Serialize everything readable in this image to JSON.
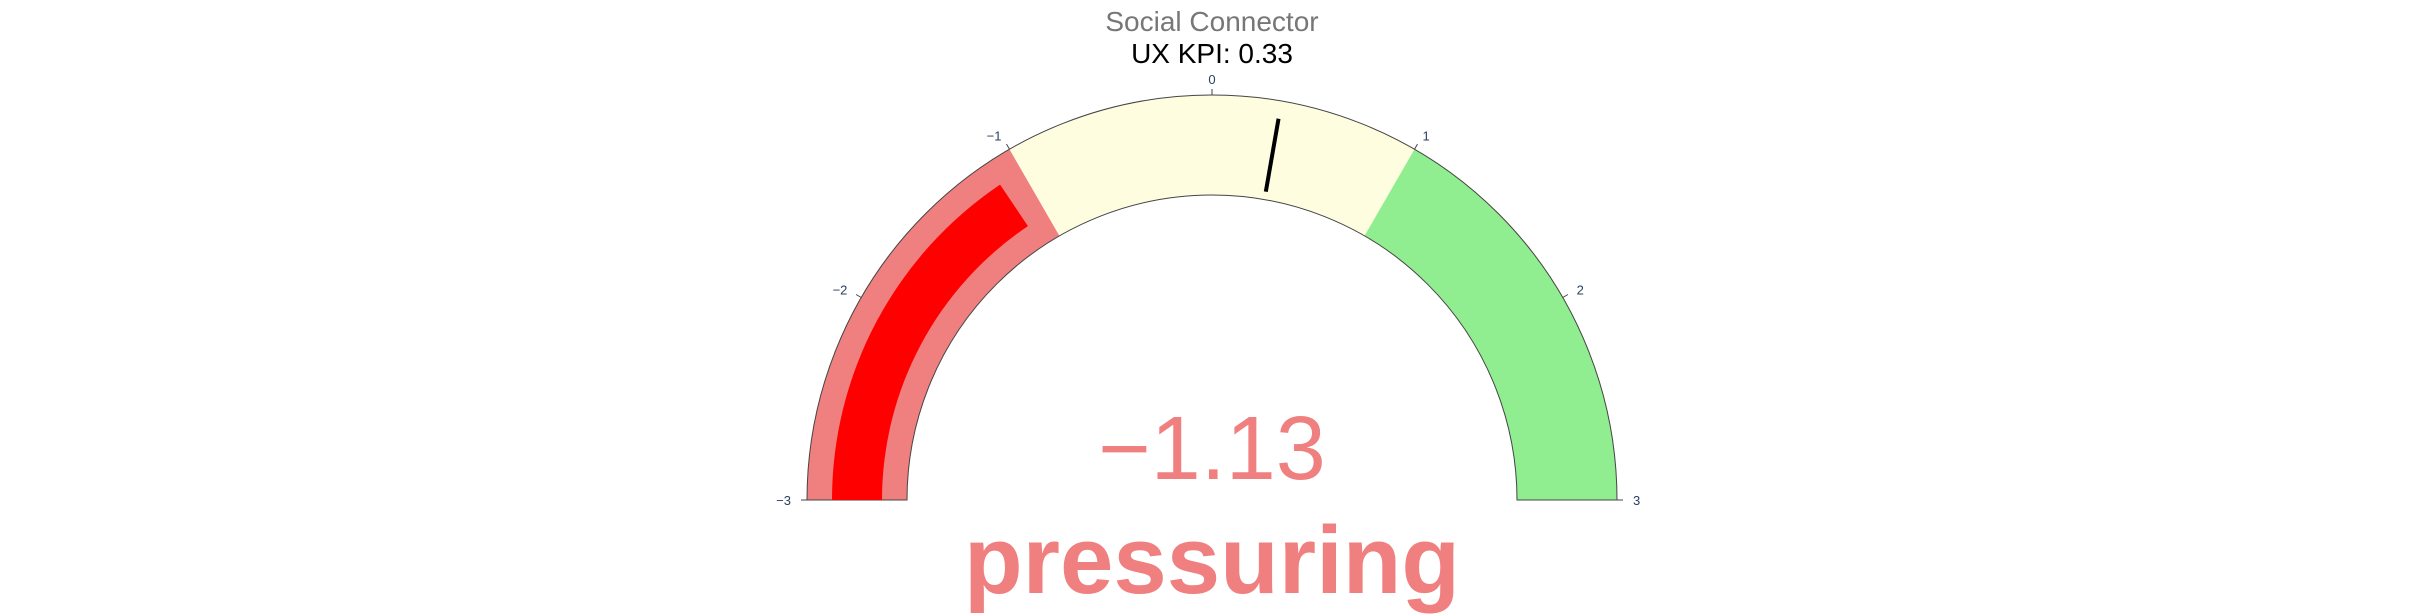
{
  "title": "Social Connector",
  "subtitle": "UX KPI: 0.33",
  "value_display": "−1.13",
  "verdict_label": "pressuring",
  "colors": {
    "outline": "#444444",
    "bar": "#ff0000",
    "needle": "#000000",
    "value_text": "#f08080",
    "title": "#777777"
  },
  "chart_data": {
    "type": "gauge",
    "range": [
      -3,
      3
    ],
    "value": -1.13,
    "threshold": 0.33,
    "ticks": [
      -3,
      -2,
      -1,
      0,
      1,
      2,
      3
    ],
    "tick_labels": [
      "−3",
      "−2",
      "−1",
      "0",
      "1",
      "2",
      "3"
    ],
    "steps": [
      {
        "range": [
          -3,
          -1
        ],
        "color": "#f08080"
      },
      {
        "range": [
          -1,
          1
        ],
        "color": "#fffde0"
      },
      {
        "range": [
          1,
          3
        ],
        "color": "#90ee90"
      }
    ]
  }
}
